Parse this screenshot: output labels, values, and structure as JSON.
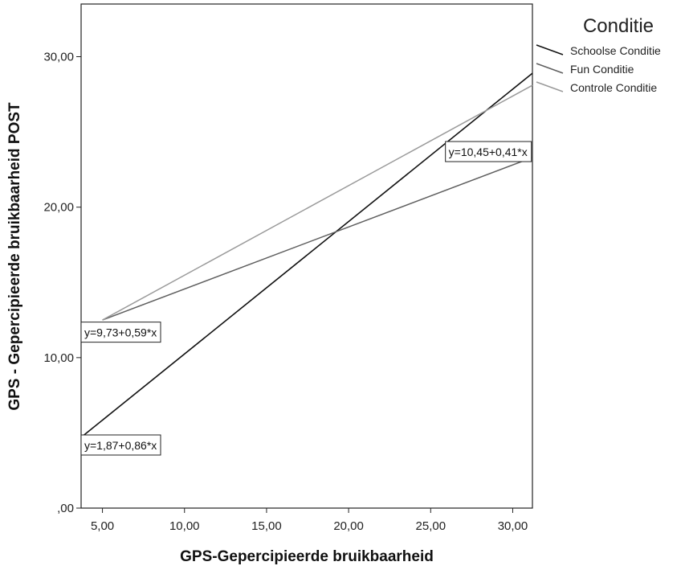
{
  "chart_data": {
    "type": "line",
    "xlabel": "GPS-Gepercipieerde bruikbaarheid",
    "ylabel": "GPS - Gepercipieerde bruikbaarheid POST",
    "xlim": [
      3.7,
      31.2
    ],
    "ylim": [
      0,
      33.5
    ],
    "x_ticks": [
      5,
      10,
      15,
      20,
      25,
      30
    ],
    "x_tick_labels": [
      "5,00",
      "10,00",
      "15,00",
      "20,00",
      "25,00",
      "30,00"
    ],
    "y_ticks": [
      0,
      10,
      20,
      30
    ],
    "y_tick_labels": [
      ",00",
      "10,00",
      "20,00",
      "30,00"
    ],
    "grid": false,
    "legend": {
      "title": "Conditie",
      "placement": "top-right",
      "entries": [
        "Schoolse Conditie",
        "Fun Conditie",
        "Controle Conditie"
      ]
    },
    "series": [
      {
        "name": "Schoolse Conditie",
        "color": "#111111",
        "x": [
          3.7,
          31.2
        ],
        "y": [
          4.7,
          28.9
        ],
        "equation": "y=1,87+0,86*x"
      },
      {
        "name": "Fun Conditie",
        "color": "#5f5f5f",
        "x": [
          5.0,
          31.2
        ],
        "y": [
          12.5,
          23.3
        ],
        "equation": "y=10,45+0,41*x"
      },
      {
        "name": "Controle Conditie",
        "color": "#9a9a9a",
        "x": [
          5.0,
          31.2
        ],
        "y": [
          12.5,
          28.1
        ],
        "equation": "y=9,73+0,59*x"
      }
    ],
    "annotations": [
      {
        "text": "y=10,45+0,41*x",
        "x": 25.9,
        "y": 23.4
      },
      {
        "text": "y=9,73+0,59*x",
        "x": 3.7,
        "y": 11.4
      },
      {
        "text": "y=1,87+0,86*x",
        "x": 3.7,
        "y": 3.9
      }
    ]
  }
}
